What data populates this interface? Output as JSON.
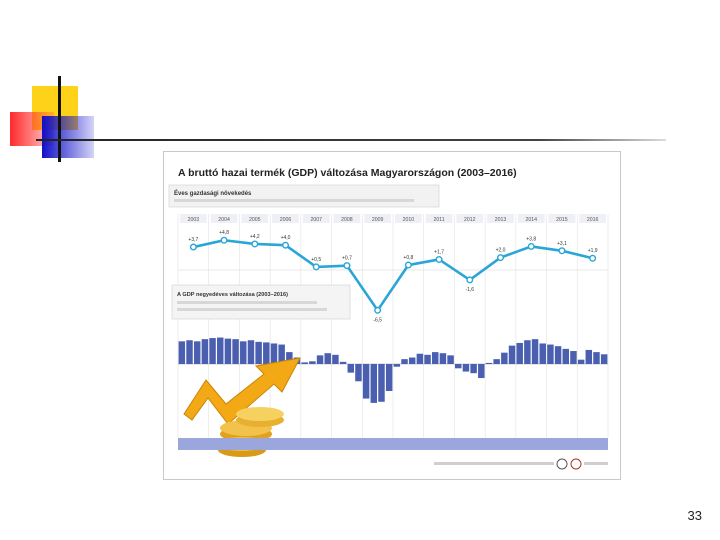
{
  "slide": {
    "page_number": "33"
  },
  "chart_data": [
    {
      "type": "line",
      "title": "A bruttó hazai termék (GDP) változása Magyarországon (2003–2016)",
      "subtitle": "Éves gazdasági növekedés",
      "x": [
        "2003",
        "2004",
        "2005",
        "2006",
        "2007",
        "2008",
        "2009",
        "2010",
        "2011",
        "2012",
        "2013",
        "2014",
        "2015",
        "2016"
      ],
      "series": [
        {
          "values": [
            3.7,
            4.8,
            4.2,
            4.0,
            0.5,
            0.7,
            -6.5,
            0.8,
            1.7,
            -1.6,
            2.0,
            3.8,
            3.1,
            1.9
          ]
        }
      ],
      "value_labels": [
        "+3,7",
        "+4,8",
        "+4,2",
        "+4,0",
        "+0,5",
        "+0,7",
        "-6,5",
        "+0,8",
        "+1,7",
        "-1,6",
        "+2,0",
        "+3,8",
        "+3,1",
        "+1,9"
      ],
      "color": "#2aa6d6"
    },
    {
      "type": "bar",
      "title": "A GDP negyedéves változása (2003–2016)",
      "values": [
        4.2,
        4.4,
        4.2,
        4.6,
        4.8,
        4.9,
        4.7,
        4.6,
        4.2,
        4.4,
        4.1,
        4.0,
        3.8,
        3.6,
        2.2,
        1.2,
        0.3,
        0.5,
        1.6,
        2.0,
        1.7,
        0.4,
        -1.6,
        -3.2,
        -6.4,
        -7.2,
        -7.0,
        -5.0,
        -0.5,
        0.9,
        1.2,
        1.9,
        1.7,
        2.2,
        2.0,
        1.6,
        -0.8,
        -1.4,
        -1.7,
        -2.6,
        0.2,
        0.9,
        2.1,
        3.4,
        3.9,
        4.4,
        4.6,
        3.8,
        3.6,
        3.3,
        2.8,
        2.4,
        0.8,
        2.6,
        2.2,
        1.8
      ],
      "color": "#4a5fb0"
    }
  ]
}
